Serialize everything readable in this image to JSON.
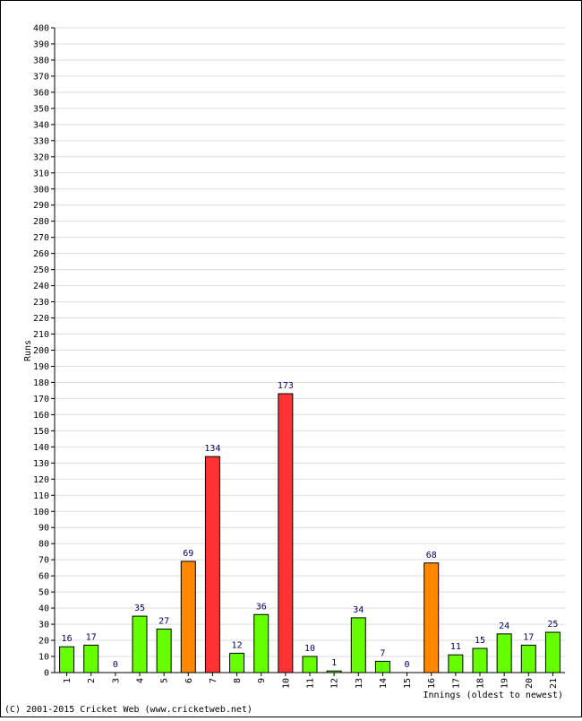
{
  "chart_data": {
    "type": "bar",
    "title": "",
    "xlabel": "Innings (oldest to newest)",
    "ylabel": "Runs",
    "ylim": [
      0,
      400
    ],
    "ytick_step": 10,
    "grid": true,
    "categories": [
      "1",
      "2",
      "3",
      "4",
      "5",
      "6",
      "7",
      "8",
      "9",
      "10",
      "11",
      "12",
      "13",
      "14",
      "15",
      "16",
      "17",
      "18",
      "19",
      "20",
      "21"
    ],
    "values": [
      16,
      17,
      0,
      35,
      27,
      69,
      134,
      12,
      36,
      173,
      10,
      1,
      34,
      7,
      0,
      68,
      11,
      15,
      24,
      17,
      25
    ],
    "value_labels": [
      "16",
      "17",
      "0",
      "35",
      "27",
      "69",
      "134",
      "12",
      "36",
      "173",
      "10",
      "1",
      "34",
      "7",
      "0",
      "68",
      "11",
      "15",
      "24",
      "17",
      "25"
    ],
    "colors": {
      "under_fifty": "#66ff00",
      "fifty": "#ff8800",
      "hundred": "#ff3333",
      "value_label": "#000066",
      "grid": "#dddddd"
    }
  },
  "footer": "(C) 2001-2015 Cricket Web (www.cricketweb.net)"
}
